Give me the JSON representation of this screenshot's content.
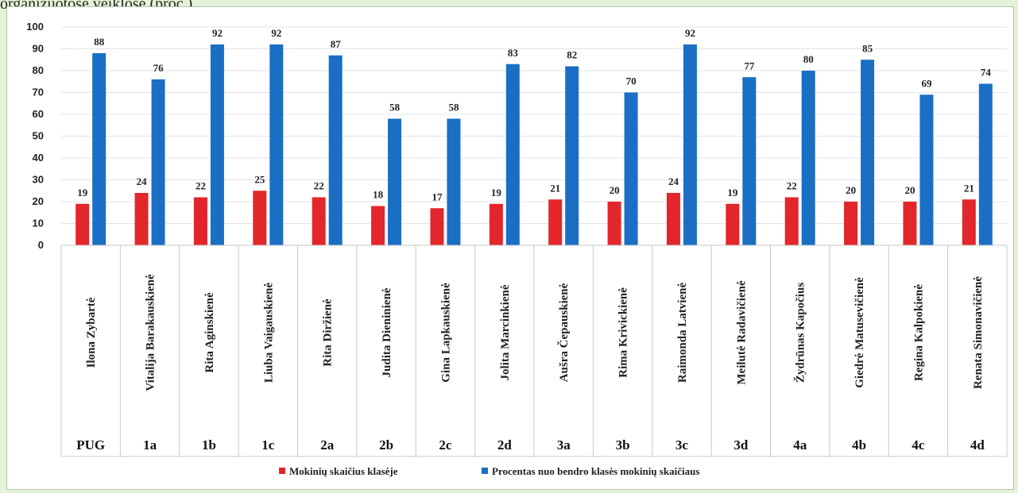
{
  "caption": "organizuotose veiklose (proc.)",
  "colors": {
    "count": "#e3262c",
    "percent": "#1a6fc4"
  },
  "chart_data": {
    "type": "bar",
    "categories": [
      "PUG",
      "1a",
      "1b",
      "1c",
      "2a",
      "2b",
      "2c",
      "2d",
      "3a",
      "3b",
      "3c",
      "3d",
      "4a",
      "4b",
      "4c",
      "4d"
    ],
    "teachers": [
      "Ilona Zybartė",
      "Vitalija Barakauskienė",
      "Rita Aginskienė",
      "Liuba Vaigauskienė",
      "Rita Diržienė",
      "Judita Dieninienė",
      "Gina Lapkauskienė",
      "Jolita Marcinkienė",
      "Aušra Čepauskienė",
      "Rima Krivickienė",
      "Raimonda Latvienė",
      "Meilutė Radavičienė",
      "Žydrūnas Kapočius",
      "Giedrė Matusevičienė",
      "Regina Kalpokienė",
      "Renata Simonavičienė"
    ],
    "series": [
      {
        "name": "Mokinių skaičius klasėje",
        "values": [
          19,
          24,
          22,
          25,
          22,
          18,
          17,
          19,
          21,
          20,
          24,
          19,
          22,
          20,
          20,
          21
        ]
      },
      {
        "name": "Procentas nuo bendro klasės mokinių skaičiaus",
        "values": [
          88,
          76,
          92,
          92,
          87,
          58,
          58,
          83,
          82,
          70,
          92,
          77,
          80,
          85,
          69,
          74
        ]
      }
    ],
    "yticks": [
      "0",
      "10",
      "20",
      "30",
      "40",
      "50",
      "60",
      "70",
      "80",
      "90",
      "100"
    ],
    "ylim": [
      0,
      100
    ],
    "grid": true,
    "legend": "bottom"
  }
}
